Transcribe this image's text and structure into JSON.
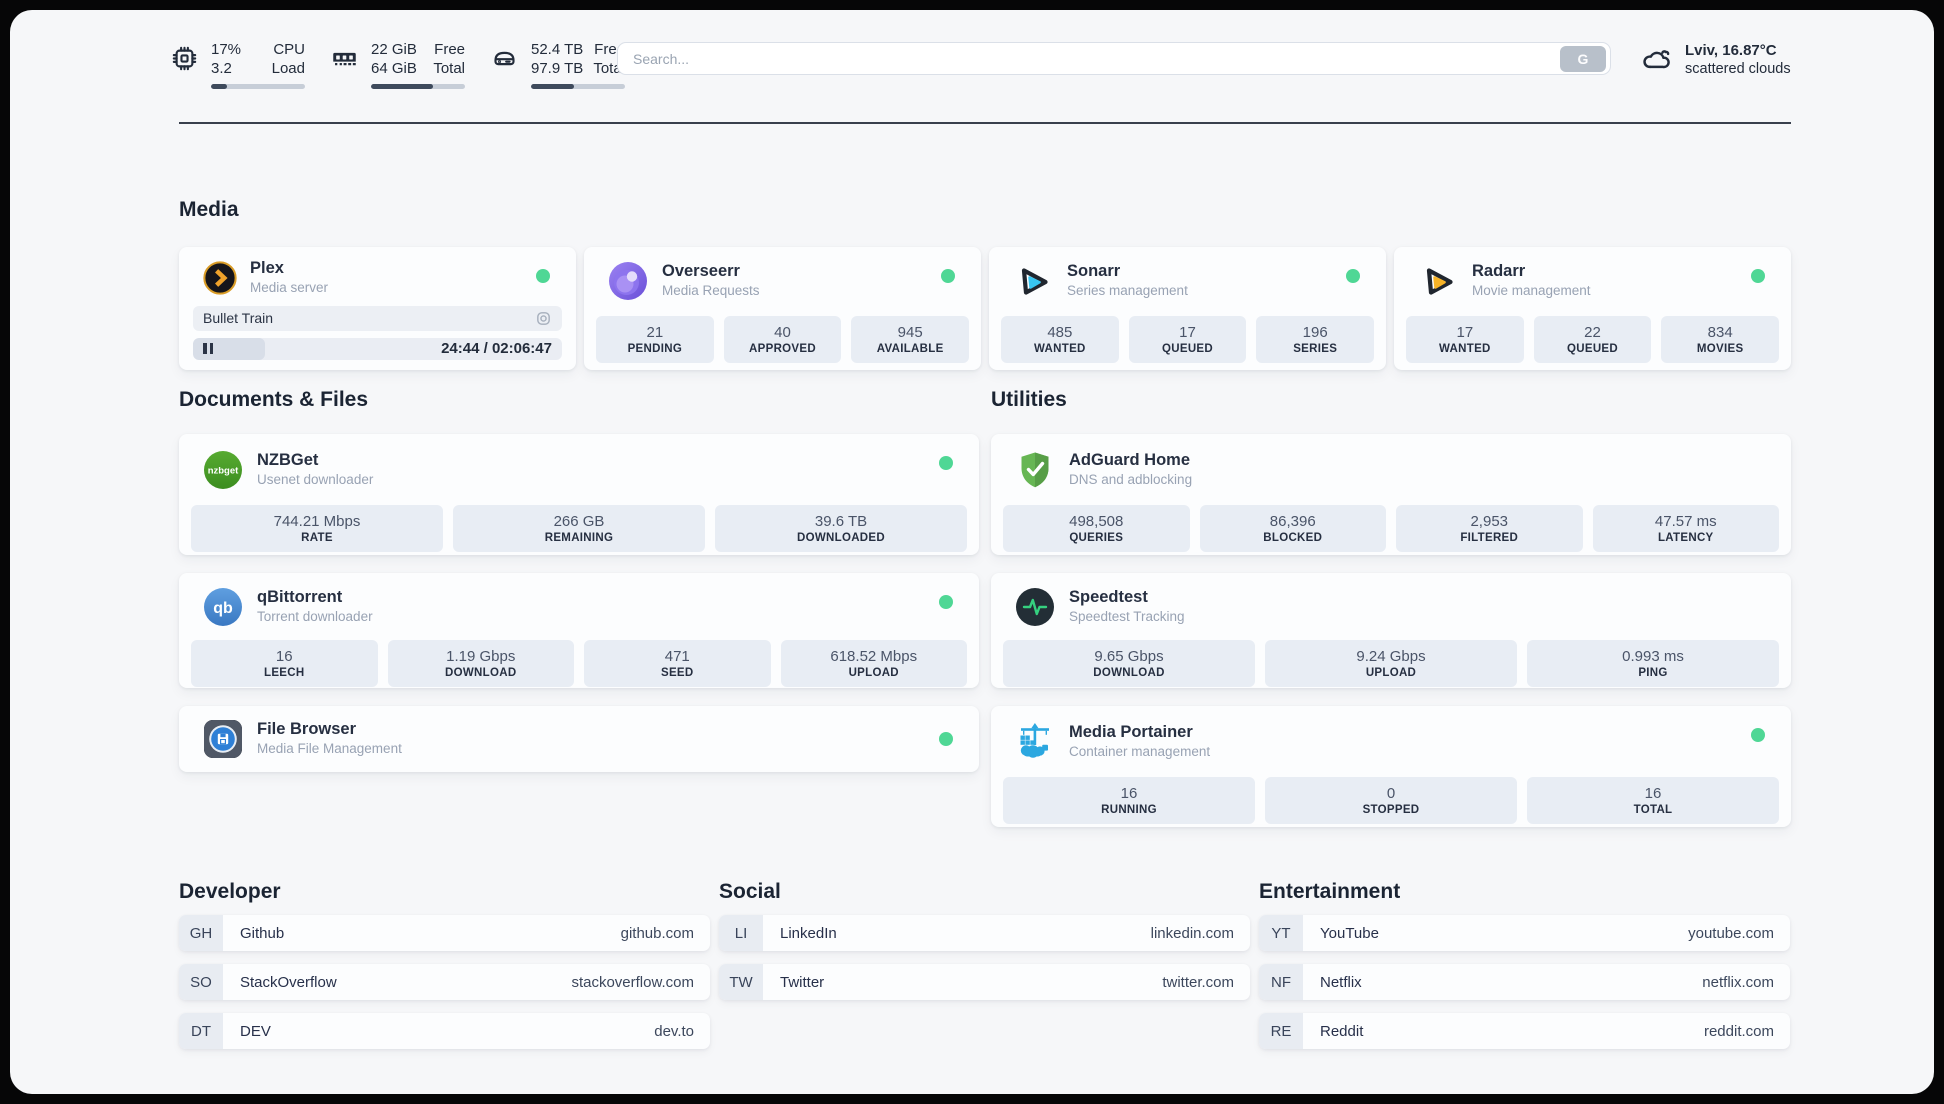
{
  "header": {
    "cpu": {
      "value_top": "17%",
      "value_bottom": "3.2",
      "label_top": "CPU",
      "label_bottom": "Load",
      "percent": 17
    },
    "ram": {
      "value_top": "22 GiB",
      "value_bottom": "64 GiB",
      "label_top": "Free",
      "label_bottom": "Total",
      "percent": 66
    },
    "disk": {
      "value_top": "52.4 TB",
      "value_bottom": "97.9 TB",
      "label_top": "Free",
      "label_bottom": "Total",
      "percent": 46
    },
    "search": {
      "placeholder": "Search...",
      "button_label": "G"
    },
    "weather": {
      "line1": "Lviv, 16.87°C",
      "line2": "scattered clouds"
    }
  },
  "media": {
    "title": "Media",
    "plex": {
      "name": "Plex",
      "subtitle": "Media server",
      "now_playing": "Bullet Train",
      "time": "24:44 / 02:06:47",
      "progress_percent": 19.5
    },
    "overseerr": {
      "name": "Overseerr",
      "subtitle": "Media Requests",
      "stats": [
        {
          "value": "21",
          "label": "PENDING"
        },
        {
          "value": "40",
          "label": "APPROVED"
        },
        {
          "value": "945",
          "label": "AVAILABLE"
        }
      ]
    },
    "sonarr": {
      "name": "Sonarr",
      "subtitle": "Series management",
      "stats": [
        {
          "value": "485",
          "label": "WANTED"
        },
        {
          "value": "17",
          "label": "QUEUED"
        },
        {
          "value": "196",
          "label": "SERIES"
        }
      ]
    },
    "radarr": {
      "name": "Radarr",
      "subtitle": "Movie management",
      "stats": [
        {
          "value": "17",
          "label": "WANTED"
        },
        {
          "value": "22",
          "label": "QUEUED"
        },
        {
          "value": "834",
          "label": "MOVIES"
        }
      ]
    }
  },
  "documents": {
    "title": "Documents & Files",
    "nzbget": {
      "name": "NZBGet",
      "subtitle": "Usenet downloader",
      "stats": [
        {
          "value": "744.21 Mbps",
          "label": "RATE"
        },
        {
          "value": "266 GB",
          "label": "REMAINING"
        },
        {
          "value": "39.6 TB",
          "label": "DOWNLOADED"
        }
      ]
    },
    "qbittorrent": {
      "name": "qBittorrent",
      "subtitle": "Torrent downloader",
      "stats": [
        {
          "value": "16",
          "label": "LEECH"
        },
        {
          "value": "1.19 Gbps",
          "label": "DOWNLOAD"
        },
        {
          "value": "471",
          "label": "SEED"
        },
        {
          "value": "618.52 Mbps",
          "label": "UPLOAD"
        }
      ]
    },
    "filebrowser": {
      "name": "File Browser",
      "subtitle": "Media File Management"
    }
  },
  "utilities": {
    "title": "Utilities",
    "adguard": {
      "name": "AdGuard Home",
      "subtitle": "DNS and adblocking",
      "stats": [
        {
          "value": "498,508",
          "label": "QUERIES"
        },
        {
          "value": "86,396",
          "label": "BLOCKED"
        },
        {
          "value": "2,953",
          "label": "FILTERED"
        },
        {
          "value": "47.57 ms",
          "label": "LATENCY"
        }
      ]
    },
    "speedtest": {
      "name": "Speedtest",
      "subtitle": "Speedtest Tracking",
      "stats": [
        {
          "value": "9.65 Gbps",
          "label": "DOWNLOAD"
        },
        {
          "value": "9.24 Gbps",
          "label": "UPLOAD"
        },
        {
          "value": "0.993 ms",
          "label": "PING"
        }
      ]
    },
    "portainer": {
      "name": "Media Portainer",
      "subtitle": "Container management",
      "stats": [
        {
          "value": "16",
          "label": "RUNNING"
        },
        {
          "value": "0",
          "label": "STOPPED"
        },
        {
          "value": "16",
          "label": "TOTAL"
        }
      ]
    }
  },
  "bookmarks": {
    "developer": {
      "title": "Developer",
      "items": [
        {
          "code": "GH",
          "name": "Github",
          "url": "github.com"
        },
        {
          "code": "SO",
          "name": "StackOverflow",
          "url": "stackoverflow.com"
        },
        {
          "code": "DT",
          "name": "DEV",
          "url": "dev.to"
        }
      ]
    },
    "social": {
      "title": "Social",
      "items": [
        {
          "code": "LI",
          "name": "LinkedIn",
          "url": "linkedin.com"
        },
        {
          "code": "TW",
          "name": "Twitter",
          "url": "twitter.com"
        }
      ]
    },
    "entertainment": {
      "title": "Entertainment",
      "items": [
        {
          "code": "YT",
          "name": "YouTube",
          "url": "youtube.com"
        },
        {
          "code": "NF",
          "name": "Netflix",
          "url": "netflix.com"
        },
        {
          "code": "RE",
          "name": "Reddit",
          "url": "reddit.com"
        }
      ]
    }
  },
  "colors": {
    "online": "#4fd795"
  }
}
